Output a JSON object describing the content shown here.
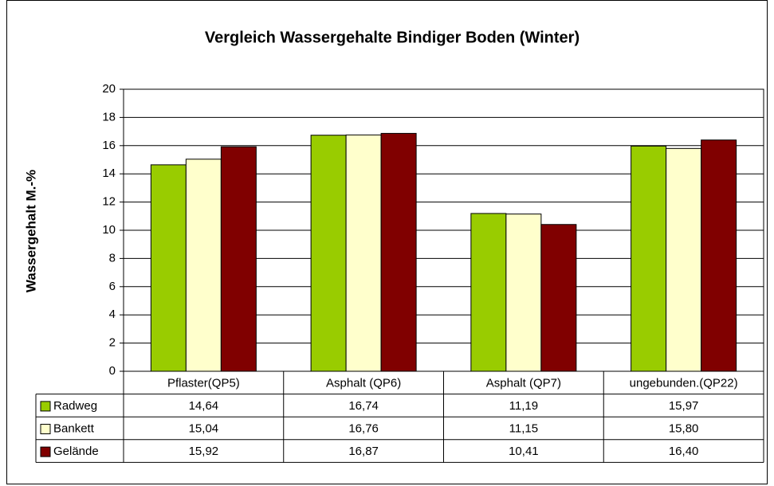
{
  "chart_data": {
    "type": "bar",
    "title": "Vergleich Wassergehalte Bindiger Boden (Winter)",
    "y_label": "Wassergehalt M.-%",
    "categories": [
      "Pflaster(QP5)",
      "Asphalt (QP6)",
      "Asphalt (QP7)",
      "ungebunden.(QP22)"
    ],
    "series": [
      {
        "name": "Radweg",
        "color": "#99cc00",
        "values": [
          14.64,
          16.74,
          11.19,
          15.97
        ],
        "value_labels": [
          "14,64",
          "16,74",
          "11,19",
          "15,97"
        ]
      },
      {
        "name": "Bankett",
        "color": "#ffffcc",
        "values": [
          15.04,
          16.76,
          11.15,
          15.8
        ],
        "value_labels": [
          "15,04",
          "16,76",
          "11,15",
          "15,80"
        ]
      },
      {
        "name": "Gelände",
        "color": "#800000",
        "values": [
          15.92,
          16.87,
          10.41,
          16.4
        ],
        "value_labels": [
          "15,92",
          "16,87",
          "10,41",
          "16,40"
        ]
      }
    ],
    "ylim": [
      0,
      20
    ],
    "yticks": [
      0,
      2,
      4,
      6,
      8,
      10,
      12,
      14,
      16,
      18,
      20
    ],
    "grid": true
  }
}
